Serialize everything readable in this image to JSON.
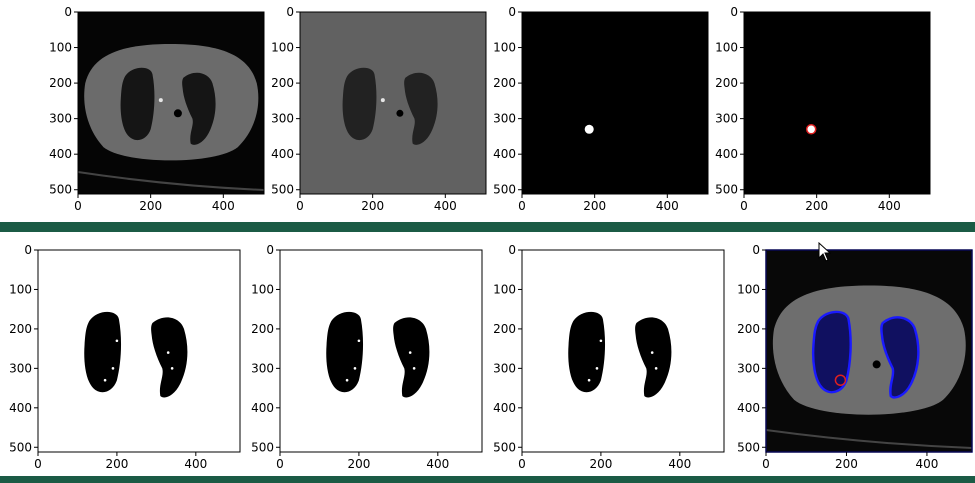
{
  "colors": {
    "divider": "#1b5b45",
    "marker_red": "#e02020",
    "contour_blue": "#1a1aff"
  },
  "top_row": {
    "panels": [
      {
        "name": "ct-scan-original",
        "content": "CT slice"
      },
      {
        "name": "ct-scan-lung-segmented",
        "content": "segmented lungs on gray background"
      },
      {
        "name": "nodule-mask",
        "content": "white nodule dot on black"
      },
      {
        "name": "nodule-mask-outlined",
        "content": "nodule dot with red outline on black"
      }
    ],
    "x_ticks": [
      "0",
      "200",
      "400"
    ],
    "y_ticks": [
      "0",
      "100",
      "200",
      "300",
      "400",
      "500"
    ]
  },
  "bottom_row": {
    "panels": [
      {
        "name": "lung-mask-1",
        "content": "binary lung mask"
      },
      {
        "name": "lung-mask-2",
        "content": "binary lung mask"
      },
      {
        "name": "lung-mask-3",
        "content": "binary lung mask"
      },
      {
        "name": "ct-overlay",
        "content": "CT with blue lung contour and red nodule circle"
      }
    ],
    "x_ticks": [
      "0",
      "200",
      "400"
    ],
    "y_ticks": [
      "0",
      "100",
      "200",
      "300",
      "400",
      "500"
    ]
  }
}
